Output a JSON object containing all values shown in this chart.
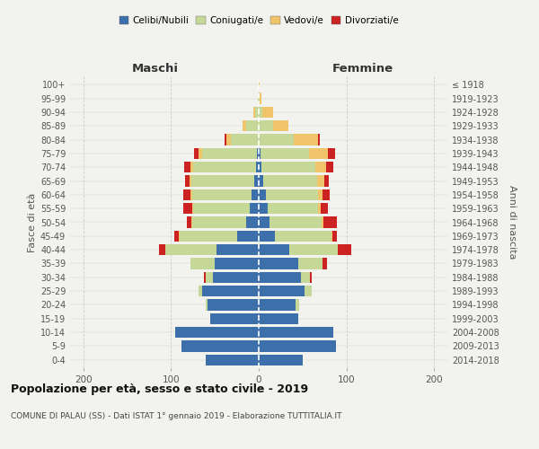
{
  "age_groups": [
    "0-4",
    "5-9",
    "10-14",
    "15-19",
    "20-24",
    "25-29",
    "30-34",
    "35-39",
    "40-44",
    "45-49",
    "50-54",
    "55-59",
    "60-64",
    "65-69",
    "70-74",
    "75-79",
    "80-84",
    "85-89",
    "90-94",
    "95-99",
    "100+"
  ],
  "birth_years": [
    "2014-2018",
    "2009-2013",
    "2004-2008",
    "1999-2003",
    "1994-1998",
    "1989-1993",
    "1984-1988",
    "1979-1983",
    "1974-1978",
    "1969-1973",
    "1964-1968",
    "1959-1963",
    "1954-1958",
    "1949-1953",
    "1944-1948",
    "1939-1943",
    "1934-1938",
    "1929-1933",
    "1924-1928",
    "1919-1923",
    "≤ 1918"
  ],
  "male": {
    "celibi": [
      60,
      88,
      95,
      55,
      58,
      65,
      52,
      50,
      48,
      25,
      14,
      10,
      8,
      5,
      3,
      2,
      0,
      0,
      0,
      0,
      0
    ],
    "coniugati": [
      0,
      0,
      0,
      0,
      2,
      4,
      8,
      28,
      58,
      65,
      62,
      65,
      68,
      72,
      72,
      62,
      32,
      14,
      4,
      1,
      0
    ],
    "vedovi": [
      0,
      0,
      0,
      0,
      0,
      0,
      0,
      0,
      0,
      1,
      1,
      1,
      2,
      2,
      3,
      5,
      5,
      4,
      2,
      0,
      0
    ],
    "divorziati": [
      0,
      0,
      0,
      0,
      0,
      0,
      2,
      0,
      8,
      5,
      5,
      10,
      8,
      5,
      7,
      5,
      2,
      0,
      0,
      0,
      0
    ]
  },
  "female": {
    "nubili": [
      50,
      88,
      85,
      45,
      42,
      52,
      48,
      45,
      35,
      18,
      12,
      10,
      8,
      5,
      3,
      2,
      0,
      0,
      0,
      0,
      0
    ],
    "coniugate": [
      0,
      0,
      0,
      0,
      4,
      8,
      10,
      28,
      55,
      65,
      60,
      58,
      60,
      62,
      62,
      55,
      40,
      16,
      4,
      1,
      0
    ],
    "vedove": [
      0,
      0,
      0,
      0,
      0,
      0,
      0,
      0,
      0,
      1,
      2,
      3,
      5,
      8,
      12,
      22,
      28,
      18,
      12,
      2,
      1
    ],
    "divorziate": [
      0,
      0,
      0,
      0,
      0,
      0,
      2,
      5,
      15,
      5,
      15,
      8,
      8,
      5,
      8,
      8,
      2,
      0,
      0,
      0,
      0
    ]
  },
  "colors": {
    "celibi": "#3d6faa",
    "coniugati": "#c5d898",
    "vedovi": "#f0c46a",
    "divorziati": "#cc2222"
  },
  "xlim": 215,
  "title": "Popolazione per età, sesso e stato civile - 2019",
  "subtitle": "COMUNE DI PALAU (SS) - Dati ISTAT 1° gennaio 2019 - Elaborazione TUTTITALIA.IT",
  "legend_labels": [
    "Celibi/Nubili",
    "Coniugati/e",
    "Vedovi/e",
    "Divorziati/e"
  ],
  "xlabel_left": "Maschi",
  "xlabel_right": "Femmine",
  "ylabel_left": "Fasce di età",
  "ylabel_right": "Anni di nascita",
  "bg_color": "#f2f2ee"
}
